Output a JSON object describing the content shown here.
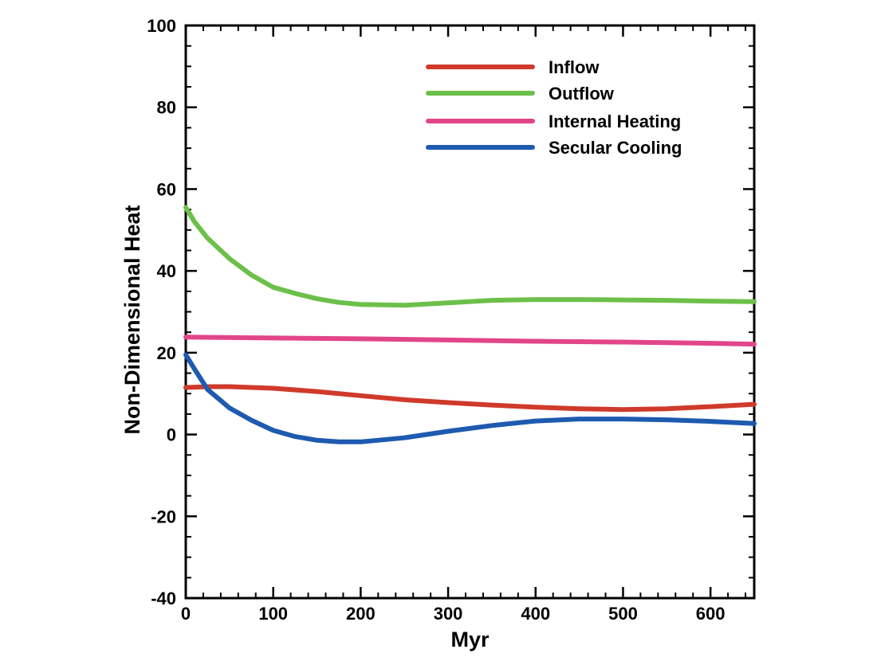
{
  "chart_data": {
    "type": "line",
    "title": "",
    "xlabel": "Myr",
    "ylabel": "Non-Dimensional Heat",
    "xlim": [
      0,
      650
    ],
    "ylim": [
      -40,
      100
    ],
    "xticks": [
      0,
      100,
      200,
      300,
      400,
      500,
      600
    ],
    "yticks": [
      -40,
      -20,
      0,
      20,
      40,
      60,
      80,
      100
    ],
    "grid": false,
    "legend_position": "top-right",
    "series": [
      {
        "name": "Inflow",
        "color": "#d03a2a",
        "x": [
          0,
          25,
          50,
          75,
          100,
          150,
          200,
          250,
          300,
          350,
          400,
          450,
          500,
          550,
          600,
          650
        ],
        "y": [
          11.5,
          11.7,
          11.7,
          11.5,
          11.3,
          10.5,
          9.5,
          8.5,
          7.8,
          7.2,
          6.7,
          6.3,
          6.1,
          6.3,
          6.8,
          7.4
        ]
      },
      {
        "name": "Outflow",
        "color": "#6cc04a",
        "x": [
          0,
          10,
          25,
          50,
          75,
          100,
          125,
          150,
          175,
          200,
          250,
          300,
          350,
          400,
          450,
          500,
          550,
          600,
          650
        ],
        "y": [
          55.5,
          52,
          48,
          43,
          39,
          36,
          34.5,
          33.2,
          32.3,
          31.8,
          31.6,
          32.2,
          32.8,
          33.0,
          33.0,
          32.9,
          32.8,
          32.6,
          32.5
        ]
      },
      {
        "name": "Internal Heating",
        "color": "#e2458a",
        "x": [
          0,
          100,
          200,
          300,
          400,
          500,
          600,
          650
        ],
        "y": [
          23.8,
          23.6,
          23.4,
          23.1,
          22.8,
          22.6,
          22.3,
          22.1
        ]
      },
      {
        "name": "Secular Cooling",
        "color": "#1e5ab0",
        "x": [
          0,
          10,
          25,
          50,
          75,
          100,
          125,
          150,
          175,
          200,
          250,
          300,
          350,
          400,
          450,
          500,
          550,
          600,
          650
        ],
        "y": [
          19.5,
          16,
          11,
          6.5,
          3.5,
          1.0,
          -0.5,
          -1.4,
          -1.8,
          -1.8,
          -0.8,
          0.8,
          2.2,
          3.3,
          3.8,
          3.8,
          3.6,
          3.2,
          2.7
        ]
      }
    ]
  }
}
